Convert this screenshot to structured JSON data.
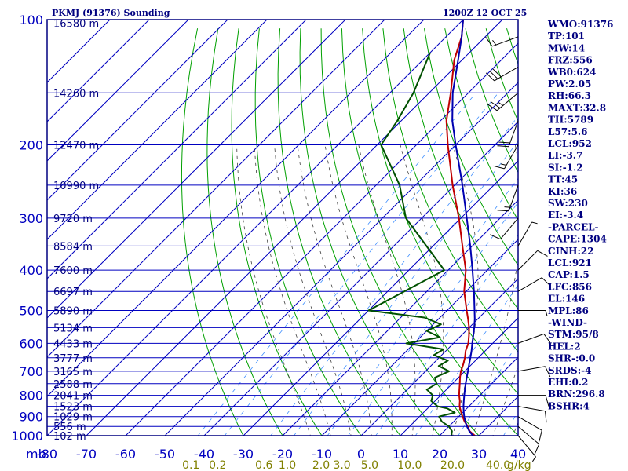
{
  "header": {
    "title": "PKMJ (91376) Sounding",
    "time": "1200Z 12 OCT 25"
  },
  "colors": {
    "frame": "#000080",
    "isobar": "#0000c0",
    "isotherm": "#0000c0",
    "dry_adiabat": "#00a000",
    "moist_adiabat": "#404040",
    "mixing_ratio": "#4090ff",
    "temperature": "#c00000",
    "dewpoint": "#005000",
    "parcel": "#0000b0",
    "wind_barbs": "#000000"
  },
  "indices": [
    "WMO:91376",
    "TP:101",
    "MW:14",
    "FRZ:556",
    "WB0:624",
    "PW:2.05",
    "RH:66.3",
    "MAXT:32.8",
    "TH:5789",
    "L57:5.6",
    "LCL:952",
    "LI:-3.7",
    "SI:-1.2",
    "TT:45",
    "KI:36",
    "SW:230",
    "EI:-3.4",
    "-PARCEL-",
    "CAPE:1304",
    "CINH:22",
    "LCL:921",
    "CAP:1.5",
    "LFC:856",
    "EL:146",
    "MPL:86",
    "-WIND-",
    "STM:95/8",
    "HEL:2",
    "SHR-:0.0",
    "SRDS:-4",
    "EHI:0.2",
    "BRN:296.8",
    "BSHR:4"
  ],
  "chart_data": {
    "type": "line",
    "title": "PKMJ (91376) Sounding",
    "subtitle": "1200Z 12 OCT 25",
    "xlabel": "mb",
    "ylabel": "",
    "xlim": [
      -80,
      40
    ],
    "ylim": [
      1000,
      100
    ],
    "pressure_ticks": [
      {
        "p": 100,
        "label": "100"
      },
      {
        "p": 200,
        "label": "200"
      },
      {
        "p": 300,
        "label": "300"
      },
      {
        "p": 400,
        "label": "400"
      },
      {
        "p": 500,
        "label": "500"
      },
      {
        "p": 600,
        "label": "600"
      },
      {
        "p": 700,
        "label": "700"
      },
      {
        "p": 800,
        "label": "800"
      },
      {
        "p": 900,
        "label": "900"
      },
      {
        "p": 1000,
        "label": "1000"
      }
    ],
    "temperature_ticks": [
      {
        "t": -80,
        "label": "-80"
      },
      {
        "t": -70,
        "label": "-70"
      },
      {
        "t": -60,
        "label": "-60"
      },
      {
        "t": -50,
        "label": "-50"
      },
      {
        "t": -40,
        "label": "-40"
      },
      {
        "t": -30,
        "label": "-30"
      },
      {
        "t": -20,
        "label": "-20"
      },
      {
        "t": -10,
        "label": "-10"
      },
      {
        "t": 0,
        "label": "0"
      },
      {
        "t": 10,
        "label": "10"
      },
      {
        "t": 20,
        "label": "20"
      },
      {
        "t": 30,
        "label": "30"
      },
      {
        "t": 40,
        "label": "40"
      }
    ],
    "height_ticks": [
      {
        "p": 102,
        "label": "16580 m"
      },
      {
        "p": 150,
        "label": "14260 m"
      },
      {
        "p": 200,
        "label": "12470 m"
      },
      {
        "p": 250,
        "label": "10990 m"
      },
      {
        "p": 300,
        "label": "9720 m"
      },
      {
        "p": 350,
        "label": "8584 m"
      },
      {
        "p": 400,
        "label": "7600 m"
      },
      {
        "p": 450,
        "label": "6697 m"
      },
      {
        "p": 500,
        "label": "5890 m"
      },
      {
        "p": 550,
        "label": "5134 m"
      },
      {
        "p": 600,
        "label": "4433 m"
      },
      {
        "p": 650,
        "label": "3777 m"
      },
      {
        "p": 700,
        "label": "3165 m"
      },
      {
        "p": 750,
        "label": "2588 m"
      },
      {
        "p": 800,
        "label": "2041 m"
      },
      {
        "p": 850,
        "label": "1523 m"
      },
      {
        "p": 900,
        "label": "1029 m"
      },
      {
        "p": 950,
        "label": "556 m"
      },
      {
        "p": 1000,
        "label": "102 m"
      }
    ],
    "mixing_ratio_labels": [
      "0.1",
      "0.2",
      "0.6",
      "1.0",
      "2.0",
      "3.0",
      "5.0",
      "10.0",
      "20.0",
      "40.0"
    ],
    "mixing_ratio_unit": "g/kg",
    "mixing_ratio_values": [
      0.1,
      0.2,
      0.6,
      1.0,
      2.0,
      3.0,
      5.0,
      10.0,
      20.0,
      40.0
    ],
    "series": [
      {
        "name": "Temperature",
        "points": [
          {
            "p": 1000,
            "t": 29.0
          },
          {
            "p": 975,
            "t": 26.5
          },
          {
            "p": 950,
            "t": 24.8
          },
          {
            "p": 925,
            "t": 22.8
          },
          {
            "p": 900,
            "t": 21.0
          },
          {
            "p": 875,
            "t": 19.3
          },
          {
            "p": 850,
            "t": 17.6
          },
          {
            "p": 825,
            "t": 16.3
          },
          {
            "p": 800,
            "t": 14.7
          },
          {
            "p": 775,
            "t": 13.3
          },
          {
            "p": 750,
            "t": 11.9
          },
          {
            "p": 725,
            "t": 10.4
          },
          {
            "p": 700,
            "t": 9.0
          },
          {
            "p": 675,
            "t": 7.9
          },
          {
            "p": 650,
            "t": 6.6
          },
          {
            "p": 625,
            "t": 5.0
          },
          {
            "p": 600,
            "t": 3.8
          },
          {
            "p": 575,
            "t": 2.0
          },
          {
            "p": 550,
            "t": 0.0
          },
          {
            "p": 525,
            "t": -2.4
          },
          {
            "p": 500,
            "t": -5.0
          },
          {
            "p": 450,
            "t": -10.5
          },
          {
            "p": 400,
            "t": -15.5
          },
          {
            "p": 350,
            "t": -22.5
          },
          {
            "p": 300,
            "t": -30.5
          },
          {
            "p": 250,
            "t": -40.5
          },
          {
            "p": 200,
            "t": -52.0
          },
          {
            "p": 175,
            "t": -58.5
          },
          {
            "p": 150,
            "t": -64.5
          },
          {
            "p": 125,
            "t": -72.0
          },
          {
            "p": 110,
            "t": -76.0
          },
          {
            "p": 100,
            "t": -80.0
          }
        ]
      },
      {
        "name": "Dewpoint",
        "points": [
          {
            "p": 1000,
            "t": 23.0
          },
          {
            "p": 975,
            "t": 22.0
          },
          {
            "p": 950,
            "t": 20.0
          },
          {
            "p": 925,
            "t": 17.0
          },
          {
            "p": 900,
            "t": 15.0
          },
          {
            "p": 880,
            "t": 18.0
          },
          {
            "p": 860,
            "t": 15.0
          },
          {
            "p": 850,
            "t": 12.0
          },
          {
            "p": 825,
            "t": 9.0
          },
          {
            "p": 800,
            "t": 8.0
          },
          {
            "p": 775,
            "t": 5.0
          },
          {
            "p": 750,
            "t": 6.0
          },
          {
            "p": 725,
            "t": 4.0
          },
          {
            "p": 700,
            "t": 6.0
          },
          {
            "p": 680,
            "t": 2.0
          },
          {
            "p": 660,
            "t": 3.0
          },
          {
            "p": 640,
            "t": -2.0
          },
          {
            "p": 620,
            "t": -1.0
          },
          {
            "p": 600,
            "t": -12.0
          },
          {
            "p": 580,
            "t": -5.0
          },
          {
            "p": 560,
            "t": -10.0
          },
          {
            "p": 540,
            "t": -8.0
          },
          {
            "p": 520,
            "t": -14.0
          },
          {
            "p": 500,
            "t": -30.0
          },
          {
            "p": 400,
            "t": -21.0
          },
          {
            "p": 300,
            "t": -44.0
          },
          {
            "p": 250,
            "t": -54.0
          },
          {
            "p": 200,
            "t": -69.0
          },
          {
            "p": 175,
            "t": -71.0
          },
          {
            "p": 150,
            "t": -74.0
          },
          {
            "p": 120,
            "t": -80.0
          }
        ]
      },
      {
        "name": "Parcel",
        "points": [
          {
            "p": 1000,
            "t": 28.5
          },
          {
            "p": 975,
            "t": 26.4
          },
          {
            "p": 950,
            "t": 24.6
          },
          {
            "p": 925,
            "t": 23.0
          },
          {
            "p": 900,
            "t": 21.4
          },
          {
            "p": 875,
            "t": 20.0
          },
          {
            "p": 850,
            "t": 18.6
          },
          {
            "p": 825,
            "t": 17.3
          },
          {
            "p": 800,
            "t": 16.0
          },
          {
            "p": 775,
            "t": 14.7
          },
          {
            "p": 750,
            "t": 13.4
          },
          {
            "p": 725,
            "t": 12.1
          },
          {
            "p": 700,
            "t": 10.8
          },
          {
            "p": 675,
            "t": 9.4
          },
          {
            "p": 650,
            "t": 8.0
          },
          {
            "p": 625,
            "t": 6.5
          },
          {
            "p": 600,
            "t": 4.8
          },
          {
            "p": 575,
            "t": 3.1
          },
          {
            "p": 550,
            "t": 1.3
          },
          {
            "p": 525,
            "t": -0.7
          },
          {
            "p": 500,
            "t": -3.0
          },
          {
            "p": 450,
            "t": -8.0
          },
          {
            "p": 400,
            "t": -13.8
          },
          {
            "p": 350,
            "t": -20.5
          },
          {
            "p": 300,
            "t": -28.5
          },
          {
            "p": 250,
            "t": -38.0
          },
          {
            "p": 200,
            "t": -50.0
          },
          {
            "p": 175,
            "t": -57.0
          },
          {
            "p": 150,
            "t": -64.0
          },
          {
            "p": 125,
            "t": -71.0
          },
          {
            "p": 110,
            "t": -76.0
          },
          {
            "p": 100,
            "t": -80.0
          }
        ]
      }
    ],
    "wind_barbs": [
      {
        "p": 110,
        "dir": 250,
        "kt": 15
      },
      {
        "p": 130,
        "dir": 240,
        "kt": 30
      },
      {
        "p": 150,
        "dir": 230,
        "kt": 25
      },
      {
        "p": 175,
        "dir": 200,
        "kt": 20
      },
      {
        "p": 200,
        "dir": 210,
        "kt": 15
      },
      {
        "p": 250,
        "dir": 200,
        "kt": 15
      },
      {
        "p": 300,
        "dir": 220,
        "kt": 10
      },
      {
        "p": 350,
        "dir": 30,
        "kt": 5
      },
      {
        "p": 400,
        "dir": 45,
        "kt": 10
      },
      {
        "p": 450,
        "dir": 60,
        "kt": 10
      },
      {
        "p": 500,
        "dir": 90,
        "kt": 5
      },
      {
        "p": 600,
        "dir": 70,
        "kt": 10
      },
      {
        "p": 700,
        "dir": 80,
        "kt": 10
      },
      {
        "p": 800,
        "dir": 90,
        "kt": 10
      },
      {
        "p": 850,
        "dir": 100,
        "kt": 10
      },
      {
        "p": 900,
        "dir": 120,
        "kt": 10
      },
      {
        "p": 950,
        "dir": 130,
        "kt": 10
      },
      {
        "p": 1000,
        "dir": 140,
        "kt": 5
      }
    ]
  }
}
